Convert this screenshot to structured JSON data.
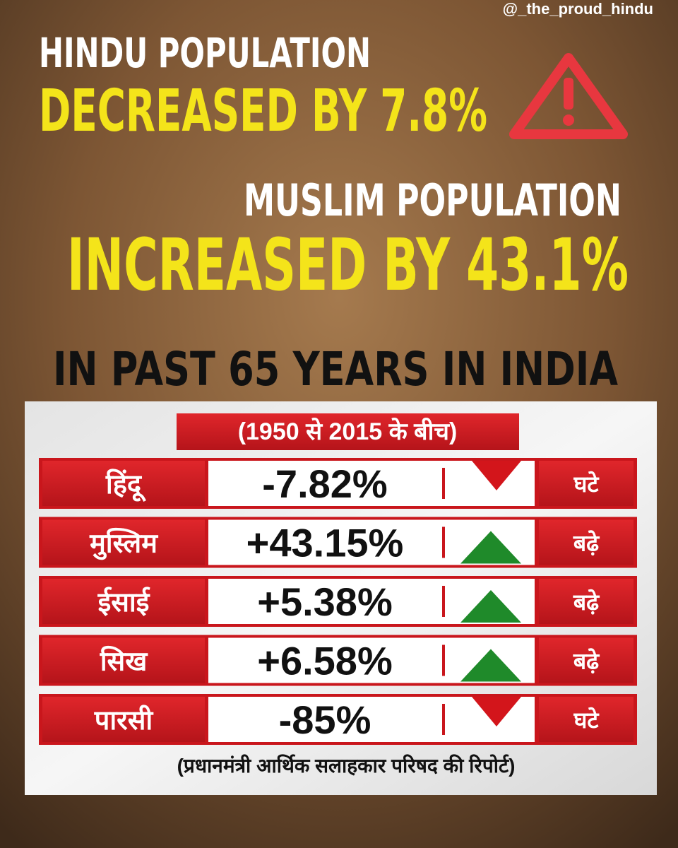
{
  "handle": "@_the_proud_hindu",
  "headline": {
    "line1": "HINDU POPULATION",
    "line2": "DECREASED BY 7.8%",
    "line3": "MUSLIM POPULATION",
    "line4": "INCREASED BY 43.1%",
    "line5": "IN PAST 65 YEARS IN INDIA"
  },
  "table": {
    "period": "(1950 से 2015 के बीच)",
    "rows": [
      [
        "हिंदू",
        "-7.82%",
        "घटे"
      ],
      [
        "मुस्लिम",
        "+43.15%",
        "बढ़े"
      ],
      [
        "ईसाई",
        "+5.38%",
        "बढ़े"
      ],
      [
        "सिख",
        "+6.58%",
        "बढ़े"
      ],
      [
        "पारसी",
        "-85%",
        "घटे"
      ]
    ],
    "source": "(प्रधानमंत्री आर्थिक सलाहकार परिषद की रिपोर्ट)"
  }
}
